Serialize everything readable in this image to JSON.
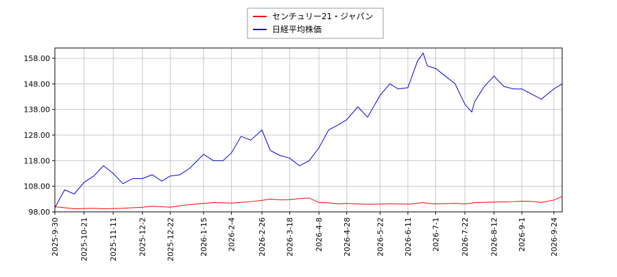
{
  "chart_data": {
    "type": "line",
    "x": [
      "2025-9-30",
      "2025-10-7",
      "2025-10-14",
      "2025-10-21",
      "2025-10-28",
      "2025-11-4",
      "2025-11-11",
      "2025-11-18",
      "2025-11-25",
      "2025-12-2",
      "2025-12-9",
      "2025-12-16",
      "2025-12-22",
      "2025-12-29",
      "2026-1-5",
      "2026-1-15",
      "2026-1-22",
      "2026-1-29",
      "2026-2-4",
      "2026-2-11",
      "2026-2-18",
      "2026-2-26",
      "2026-3-4",
      "2026-3-11",
      "2026-3-18",
      "2026-3-25",
      "2026-4-1",
      "2026-4-8",
      "2026-4-15",
      "2026-4-22",
      "2026-4-28",
      "2026-5-6",
      "2026-5-13",
      "2026-5-22",
      "2026-5-29",
      "2026-6-4",
      "2026-6-11",
      "2026-6-18",
      "2026-6-22",
      "2026-6-25",
      "2026-7-1",
      "2026-7-8",
      "2026-7-15",
      "2026-7-22",
      "2026-7-27",
      "2026-7-29",
      "2026-8-5",
      "2026-8-12",
      "2026-8-19",
      "2026-8-26",
      "2026-9-1",
      "2026-9-8",
      "2026-9-15",
      "2026-9-24",
      "2026-9-30"
    ],
    "series": [
      {
        "name": "センチュリー21・ジャパン",
        "color": "#ff0000",
        "values": [
          100,
          99.6,
          99.2,
          99.3,
          99.4,
          99.2,
          99.3,
          99.4,
          99.6,
          99.8,
          100.2,
          100,
          99.8,
          100.4,
          100.8,
          101.3,
          101.6,
          101.5,
          101.4,
          101.7,
          102,
          102.5,
          103,
          102.7,
          102.8,
          103.2,
          103.4,
          101.6,
          101.5,
          101.1,
          101.3,
          101.1,
          100.9,
          101,
          101.2,
          101.1,
          101,
          101.4,
          101.6,
          101.3,
          101.1,
          101.2,
          101.3,
          101.1,
          101.4,
          101.6,
          101.7,
          101.8,
          101.9,
          102,
          102.2,
          102.1,
          101.7,
          102.6,
          104
        ]
      },
      {
        "name": "日経平均株価",
        "color": "#0000cc",
        "values": [
          99.6,
          106.6,
          105,
          109.5,
          112,
          116,
          113,
          109,
          111,
          111,
          112.5,
          110,
          112,
          112.5,
          115,
          120.5,
          118,
          118,
          121,
          127.5,
          126,
          130,
          122,
          120,
          119,
          116,
          118,
          123,
          130,
          132,
          134,
          139,
          135,
          143.5,
          148,
          146,
          146.5,
          157,
          160,
          155,
          154,
          151,
          148,
          140,
          137,
          141,
          147,
          151,
          147,
          146,
          146,
          144,
          142,
          146,
          148
        ]
      }
    ],
    "xlim": [
      "2025-9-30",
      "2026-9-30"
    ],
    "xticks": [
      "2025-9-30",
      "2025-10-21",
      "2025-11-11",
      "2025-12-2",
      "2025-12-22",
      "2026-1-15",
      "2026-2-4",
      "2026-2-26",
      "2026-3-18",
      "2026-4-8",
      "2026-4-28",
      "2026-5-22",
      "2026-6-11",
      "2026-7-1",
      "2026-7-22",
      "2026-8-12",
      "2026-9-1",
      "2026-9-24"
    ],
    "ylim": [
      98,
      162
    ],
    "yticks": [
      {
        "value": 98,
        "label": "98.00"
      },
      {
        "value": 108,
        "label": "108.00"
      },
      {
        "value": 118,
        "label": "118.00"
      },
      {
        "value": 128,
        "label": "128.00"
      },
      {
        "value": 138,
        "label": "138.00"
      },
      {
        "value": 148,
        "label": "148.00"
      },
      {
        "value": 158,
        "label": "158.00"
      }
    ],
    "grid": true,
    "legend": "upper center"
  }
}
